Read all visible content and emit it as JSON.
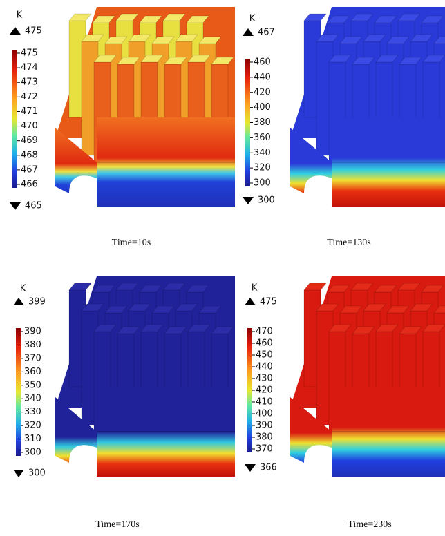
{
  "panels": [
    {
      "unit": "K",
      "max": 475,
      "min": 465,
      "ticks": [
        475,
        474,
        473,
        472,
        471,
        470,
        469,
        468,
        467,
        466
      ],
      "caption": "Time=10s"
    },
    {
      "unit": "K",
      "max": 467,
      "min": 300,
      "ticks": [
        460,
        440,
        420,
        400,
        380,
        360,
        340,
        320,
        300
      ],
      "caption": "Time=130s"
    },
    {
      "unit": "K",
      "max": 399,
      "min": 300,
      "ticks": [
        390,
        380,
        370,
        360,
        350,
        340,
        330,
        320,
        310,
        300
      ],
      "caption": "Time=170s"
    },
    {
      "unit": "K",
      "max": 475,
      "min": 366,
      "ticks": [
        470,
        460,
        450,
        440,
        430,
        420,
        410,
        400,
        390,
        380,
        370
      ],
      "caption": "Time=230s"
    }
  ]
}
